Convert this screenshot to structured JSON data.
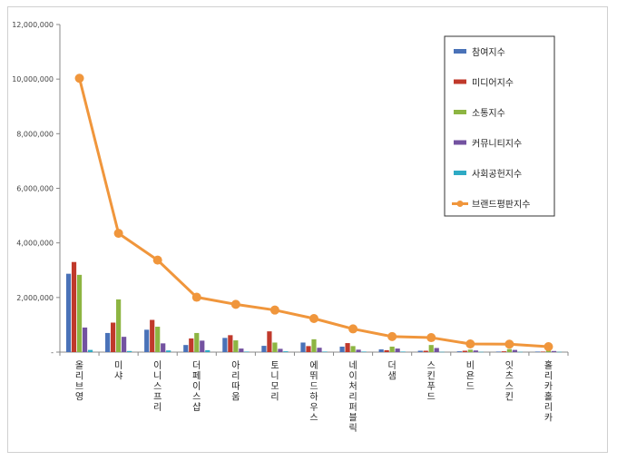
{
  "chart_data": {
    "type": "bar",
    "ylim": [
      0,
      12000000
    ],
    "yticks": [
      "-",
      "2,000,000",
      "4,000,000",
      "6,000,000",
      "8,000,000",
      "10,000,000",
      "12,000,000"
    ],
    "ytick_values": [
      0,
      2000000,
      4000000,
      6000000,
      8000000,
      10000000,
      12000000
    ],
    "grid": false,
    "legend_position": "top-right",
    "categories": [
      "올리브영",
      "미샤",
      "이니스프리",
      "더페이스샵",
      "아리따움",
      "토니모리",
      "에뛰드하우스",
      "네이처리퍼블릭",
      "더샘",
      "스킨푸드",
      "비욘드",
      "잇츠스킨",
      "홀리카홀리카"
    ],
    "series": [
      {
        "name": "참여지수",
        "type": "bar",
        "color": "#4a72b8",
        "values": [
          2870000,
          700000,
          820000,
          260000,
          520000,
          230000,
          350000,
          200000,
          100000,
          50000,
          30000,
          20000,
          20000
        ]
      },
      {
        "name": "미디어지수",
        "type": "bar",
        "color": "#c0392b",
        "values": [
          3300000,
          1080000,
          1180000,
          500000,
          620000,
          760000,
          220000,
          330000,
          70000,
          50000,
          50000,
          30000,
          20000
        ]
      },
      {
        "name": "소통지수",
        "type": "bar",
        "color": "#8db542",
        "values": [
          2830000,
          1930000,
          930000,
          700000,
          430000,
          350000,
          470000,
          220000,
          200000,
          260000,
          90000,
          110000,
          60000
        ]
      },
      {
        "name": "커뮤니티지수",
        "type": "bar",
        "color": "#7352a0",
        "values": [
          900000,
          560000,
          320000,
          420000,
          130000,
          120000,
          160000,
          90000,
          130000,
          150000,
          60000,
          80000,
          40000
        ]
      },
      {
        "name": "사회공헌지수",
        "type": "bar",
        "color": "#2eaac4",
        "values": [
          80000,
          40000,
          60000,
          70000,
          20000,
          30000,
          20000,
          20000,
          20000,
          10000,
          10000,
          10000,
          10000
        ]
      },
      {
        "name": "브랜드평판지수",
        "type": "line",
        "color": "#f0963c",
        "values": [
          10030000,
          4350000,
          3370000,
          2010000,
          1750000,
          1540000,
          1230000,
          850000,
          570000,
          530000,
          300000,
          290000,
          200000
        ]
      }
    ]
  }
}
